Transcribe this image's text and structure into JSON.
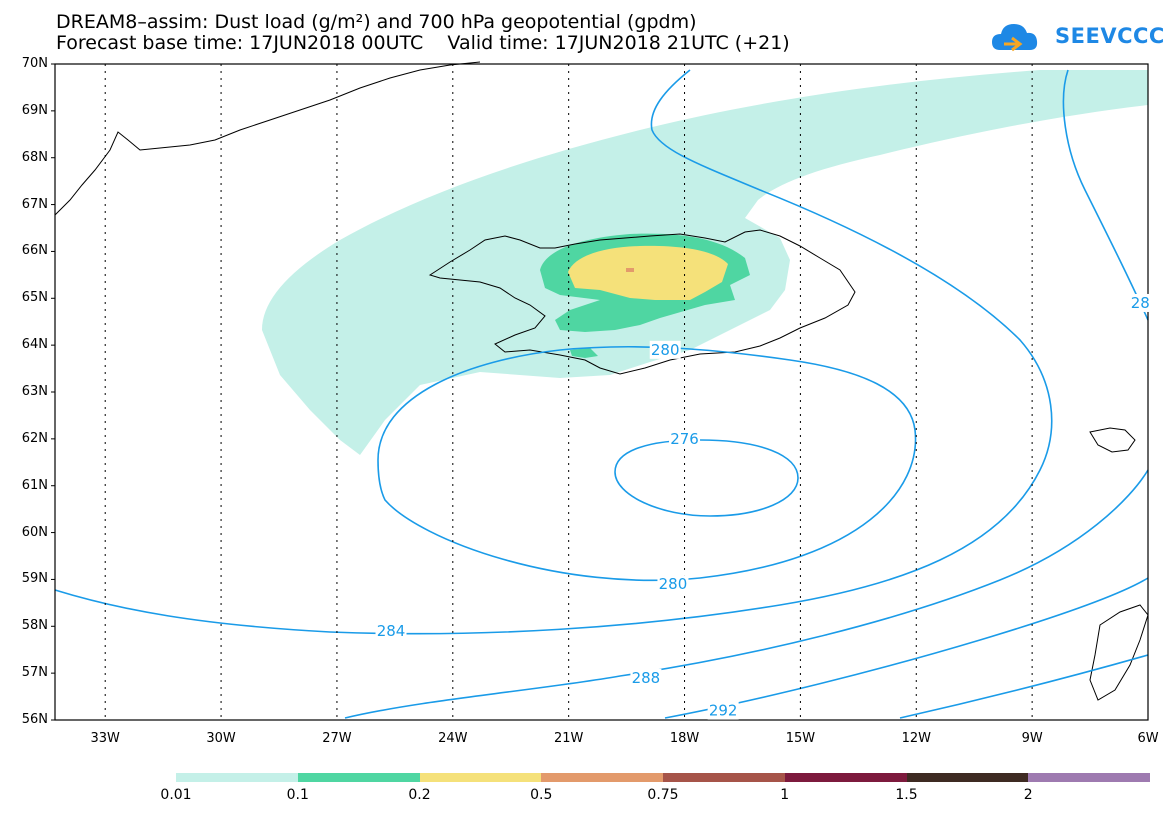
{
  "title": {
    "line1": "DREAM8–assim: Dust load (g/m²) and 700 hPa geopotential (gpdm)",
    "line2": "Forecast base time: 17JUN2018 00UTC    Valid time: 17JUN2018 21UTC (+21)"
  },
  "logo": {
    "text": "SEEVCCC",
    "icon": "cloud-icon",
    "color": "#1e88e5"
  },
  "map": {
    "lat_labels": [
      "70N",
      "69N",
      "68N",
      "67N",
      "66N",
      "65N",
      "64N",
      "63N",
      "62N",
      "61N",
      "60N",
      "59N",
      "58N",
      "57N",
      "56N"
    ],
    "lon_labels": [
      "33W",
      "30W",
      "27W",
      "24W",
      "21W",
      "18W",
      "15W",
      "12W",
      "9W",
      "6W"
    ],
    "contour_color": "#1a9be8",
    "contour_labels": [
      {
        "text": "280",
        "lon": -18.5,
        "lat": 63.9
      },
      {
        "text": "276",
        "lon": -18.0,
        "lat": 62.0
      },
      {
        "text": "280",
        "lon": -18.3,
        "lat": 58.9
      },
      {
        "text": "284",
        "lon": -25.6,
        "lat": 57.9
      },
      {
        "text": "288",
        "lon": -19.0,
        "lat": 56.9
      },
      {
        "text": "292",
        "lon": -17.0,
        "lat": 56.2
      },
      {
        "text": "28",
        "lon": -6.2,
        "lat": 64.9
      }
    ]
  },
  "legend": {
    "colors": [
      "#c4f0e8",
      "#4fd6a2",
      "#f5e17a",
      "#e39a6b",
      "#a65449",
      "#7d1a3d",
      "#3e2a22",
      "#9e7ab0"
    ],
    "labels": [
      "0.01",
      "0.1",
      "0.2",
      "0.5",
      "0.75",
      "1",
      "1.5",
      "2"
    ]
  }
}
